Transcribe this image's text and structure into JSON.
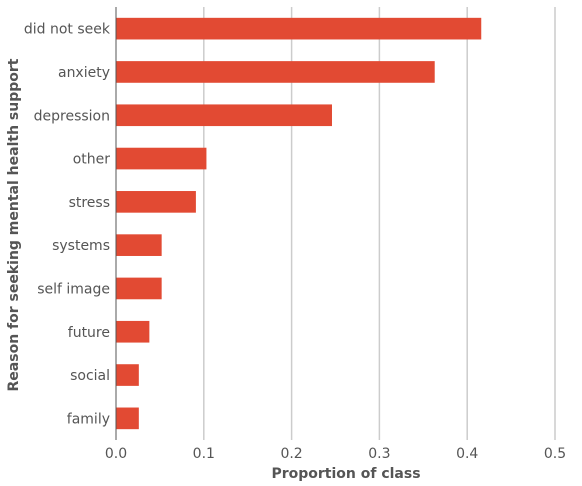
{
  "chart_data": {
    "type": "bar",
    "orientation": "horizontal",
    "categories": [
      "did not seek",
      "anxiety",
      "depression",
      "other",
      "stress",
      "systems",
      "self image",
      "future",
      "social",
      "family"
    ],
    "values": [
      0.416,
      0.363,
      0.246,
      0.103,
      0.091,
      0.052,
      0.052,
      0.038,
      0.026,
      0.026
    ],
    "xlabel": "Proportion of class",
    "ylabel": "Reason for seeking mental health support",
    "xlim": [
      0,
      0.5
    ],
    "xticks": [
      "0.0",
      "0.1",
      "0.2",
      "0.3",
      "0.4",
      "0.5"
    ],
    "grid": "vertical",
    "bar_color": "#E24A33",
    "grid_color": "#CCCCCC"
  }
}
